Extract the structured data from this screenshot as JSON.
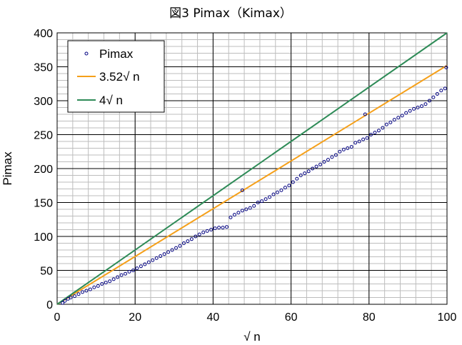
{
  "chart_data": {
    "type": "scatter",
    "title": "図3 Pimax（Kimax）",
    "xlabel": "√ n",
    "ylabel": "Pimax",
    "xlim": [
      0,
      100
    ],
    "ylim": [
      0,
      400
    ],
    "x_ticks": [
      "0",
      "20",
      "40",
      "60",
      "80",
      "100"
    ],
    "y_ticks": [
      "0",
      "50",
      "100",
      "150",
      "200",
      "250",
      "300",
      "350",
      "400"
    ],
    "grid": true,
    "legend_position": "top-left",
    "series": [
      {
        "name": "Pimax",
        "kind": "scatter",
        "color": "#000080",
        "x": [
          1.4,
          2.0,
          2.8,
          3.5,
          4.5,
          5.5,
          6.5,
          7.5,
          8.5,
          9.5,
          10.5,
          11.5,
          12.5,
          13.5,
          14.5,
          15.5,
          16.5,
          17.5,
          18.5,
          19.5,
          20.5,
          21.5,
          22.5,
          23.5,
          24.5,
          25.5,
          26.5,
          27.5,
          28.5,
          29.5,
          30.5,
          31.5,
          32.5,
          33.5,
          34.5,
          35.5,
          36.5,
          37.5,
          38.5,
          39.5,
          40.5,
          41.5,
          42.5,
          43.5,
          44.5,
          45.5,
          46.5,
          47.5,
          48.5,
          49.5,
          50.5,
          51.5,
          52.5,
          53.5,
          54.5,
          55.5,
          56.5,
          57.5,
          58.5,
          59.5,
          60.5,
          61.5,
          62.5,
          63.5,
          64.5,
          65.5,
          66.5,
          67.5,
          68.5,
          69.5,
          70.5,
          71.5,
          72.5,
          73.5,
          74.5,
          75.5,
          76.5,
          77.5,
          78.5,
          79.5,
          80.5,
          81.5,
          82.5,
          83.5,
          84.5,
          85.5,
          86.5,
          87.5,
          88.5,
          89.5,
          90.5,
          91.5,
          92.5,
          93.5,
          94.5,
          95.5,
          96.5,
          97.5,
          98.5,
          99.5,
          47.5,
          79.0,
          99.8
        ],
        "y": [
          2,
          5,
          8,
          10,
          12,
          15,
          18,
          20,
          22,
          25,
          27,
          30,
          32,
          34,
          37,
          40,
          43,
          45,
          48,
          50,
          53,
          56,
          59,
          62,
          65,
          68,
          71,
          74,
          77,
          80,
          83,
          86,
          90,
          93,
          96,
          100,
          103,
          106,
          108,
          110,
          112,
          113,
          113,
          114,
          128,
          132,
          135,
          138,
          140,
          142,
          145,
          150,
          152,
          155,
          158,
          162,
          165,
          168,
          172,
          175,
          180,
          185,
          190,
          193,
          196,
          200,
          203,
          206,
          210,
          213,
          217,
          220,
          225,
          228,
          230,
          232,
          238,
          240,
          243,
          245,
          250,
          253,
          256,
          260,
          265,
          268,
          272,
          275,
          278,
          282,
          285,
          288,
          290,
          292,
          295,
          300,
          305,
          310,
          315,
          318,
          168,
          280,
          349
        ]
      },
      {
        "name": "3.52√ n",
        "kind": "line",
        "color": "#f5a01a",
        "x": [
          0,
          100
        ],
        "y": [
          0,
          352
        ]
      },
      {
        "name": "4√ n",
        "kind": "line",
        "color": "#2e8b57",
        "x": [
          0,
          100
        ],
        "y": [
          0,
          400
        ]
      }
    ]
  }
}
